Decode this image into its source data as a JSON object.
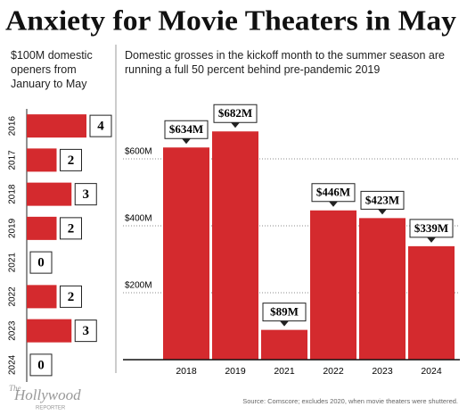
{
  "title": "Anxiety for Movie Theaters in May",
  "chart_data": [
    {
      "type": "hbar",
      "subtitle": "$100M domestic openers from January to May",
      "categories": [
        "2016",
        "2017",
        "2018",
        "2019",
        "2021",
        "2022",
        "2023",
        "2024"
      ],
      "values": [
        4,
        2,
        3,
        2,
        0,
        2,
        3,
        0
      ],
      "xlim": [
        0,
        4
      ],
      "color": "#d42a2e"
    },
    {
      "type": "bar",
      "subtitle": "Domestic grosses in the kickoff month to the summer season are running a full 50 percent behind pre-pandemic 2019",
      "categories": [
        "2018",
        "2019",
        "2021",
        "2022",
        "2023",
        "2024"
      ],
      "values": [
        634,
        682,
        89,
        446,
        423,
        339
      ],
      "value_labels": [
        "$634M",
        "$682M",
        "$89M",
        "$446M",
        "$423M",
        "$339M"
      ],
      "ylim": [
        0,
        700
      ],
      "yticks": [
        {
          "value": 200,
          "label": "$200M"
        },
        {
          "value": 400,
          "label": "$400M"
        },
        {
          "value": 600,
          "label": "$600M"
        }
      ],
      "grid": true,
      "color": "#d42a2e"
    }
  ],
  "logo": {
    "the": "The",
    "name": "Hollywood",
    "sub": "REPORTER"
  },
  "source": "Source: Comscore; excludes 2020, when movie theaters were shuttered."
}
